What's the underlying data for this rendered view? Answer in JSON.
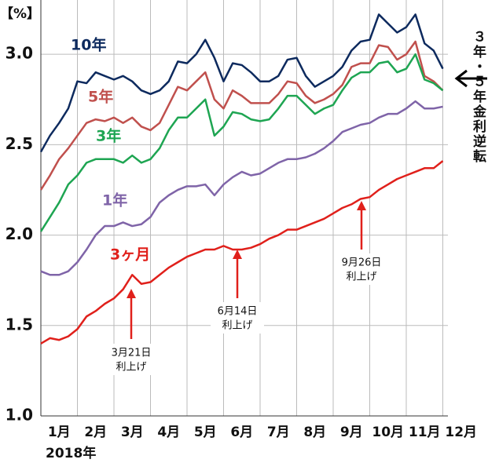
{
  "chart_data": {
    "type": "line",
    "y_unit": "【%】",
    "year_label": "2018年",
    "categories": [
      "1月",
      "2月",
      "3月",
      "4月",
      "5月",
      "6月",
      "7月",
      "8月",
      "9月",
      "10月",
      "11月",
      "12月"
    ],
    "x": [
      0,
      0.25,
      0.5,
      0.75,
      1,
      1.25,
      1.5,
      1.75,
      2,
      2.25,
      2.5,
      2.75,
      3,
      3.25,
      3.5,
      3.75,
      4,
      4.25,
      4.5,
      4.75,
      5,
      5.25,
      5.5,
      5.75,
      6,
      6.25,
      6.5,
      6.75,
      7,
      7.25,
      7.5,
      7.75,
      8,
      8.25,
      8.5,
      8.75,
      9,
      9.25,
      9.5,
      9.75,
      10,
      10.25,
      10.5,
      10.75,
      11
    ],
    "xlim": [
      0,
      11.14
    ],
    "ylim": [
      1.0,
      3.3
    ],
    "yticks": [
      {
        "value": 1.0,
        "label": "1.0"
      },
      {
        "value": 1.5,
        "label": "1.5"
      },
      {
        "value": 2.0,
        "label": "2.0"
      },
      {
        "value": 2.5,
        "label": "2.5"
      },
      {
        "value": 3.0,
        "label": "3.0"
      }
    ],
    "grid": true,
    "series": [
      {
        "name": "10年",
        "color": "#0d2a5e",
        "values": [
          2.46,
          2.55,
          2.62,
          2.7,
          2.85,
          2.84,
          2.9,
          2.88,
          2.86,
          2.88,
          2.85,
          2.8,
          2.78,
          2.8,
          2.85,
          2.96,
          2.95,
          3.0,
          3.08,
          2.98,
          2.85,
          2.95,
          2.94,
          2.9,
          2.85,
          2.85,
          2.88,
          2.97,
          2.98,
          2.88,
          2.82,
          2.85,
          2.88,
          2.93,
          3.02,
          3.07,
          3.08,
          3.22,
          3.17,
          3.12,
          3.15,
          3.22,
          3.06,
          3.02,
          2.92
        ]
      },
      {
        "name": "5年",
        "color": "#c0504d",
        "values": [
          2.25,
          2.33,
          2.42,
          2.48,
          2.55,
          2.62,
          2.64,
          2.63,
          2.65,
          2.62,
          2.65,
          2.6,
          2.58,
          2.62,
          2.72,
          2.82,
          2.8,
          2.85,
          2.9,
          2.75,
          2.7,
          2.8,
          2.77,
          2.73,
          2.73,
          2.73,
          2.78,
          2.85,
          2.84,
          2.77,
          2.73,
          2.75,
          2.78,
          2.83,
          2.93,
          2.95,
          2.95,
          3.05,
          3.04,
          2.97,
          3.0,
          3.07,
          2.88,
          2.85,
          2.8
        ]
      },
      {
        "name": "3年",
        "color": "#1ea552",
        "values": [
          2.02,
          2.1,
          2.18,
          2.28,
          2.33,
          2.4,
          2.42,
          2.42,
          2.42,
          2.4,
          2.44,
          2.4,
          2.42,
          2.48,
          2.58,
          2.65,
          2.65,
          2.7,
          2.75,
          2.55,
          2.6,
          2.68,
          2.67,
          2.64,
          2.63,
          2.64,
          2.7,
          2.77,
          2.77,
          2.72,
          2.67,
          2.7,
          2.72,
          2.8,
          2.87,
          2.9,
          2.9,
          2.95,
          2.96,
          2.9,
          2.92,
          3.0,
          2.86,
          2.84,
          2.8
        ]
      },
      {
        "name": "1年",
        "color": "#7f64a8",
        "values": [
          1.8,
          1.78,
          1.78,
          1.8,
          1.85,
          1.92,
          2.0,
          2.05,
          2.05,
          2.07,
          2.05,
          2.06,
          2.1,
          2.18,
          2.22,
          2.25,
          2.27,
          2.27,
          2.28,
          2.22,
          2.28,
          2.32,
          2.35,
          2.33,
          2.34,
          2.37,
          2.4,
          2.42,
          2.42,
          2.43,
          2.45,
          2.48,
          2.52,
          2.57,
          2.59,
          2.61,
          2.62,
          2.65,
          2.67,
          2.67,
          2.7,
          2.74,
          2.7,
          2.7,
          2.71
        ]
      },
      {
        "name": "3ヶ月",
        "color": "#e0201b",
        "values": [
          1.4,
          1.43,
          1.42,
          1.44,
          1.48,
          1.55,
          1.58,
          1.62,
          1.65,
          1.7,
          1.78,
          1.73,
          1.74,
          1.78,
          1.82,
          1.85,
          1.88,
          1.9,
          1.92,
          1.92,
          1.94,
          1.92,
          1.92,
          1.93,
          1.95,
          1.98,
          2.0,
          2.03,
          2.03,
          2.05,
          2.07,
          2.09,
          2.12,
          2.15,
          2.17,
          2.2,
          2.21,
          2.25,
          2.28,
          2.31,
          2.33,
          2.35,
          2.37,
          2.37,
          2.41
        ]
      }
    ],
    "annotations": [
      {
        "lines": [
          "3月21日",
          "利上げ"
        ]
      },
      {
        "lines": [
          "6月14日",
          "利上げ"
        ]
      },
      {
        "lines": [
          "9月26日",
          "利上げ"
        ]
      }
    ],
    "side_note": "３年・５年金利逆転"
  }
}
